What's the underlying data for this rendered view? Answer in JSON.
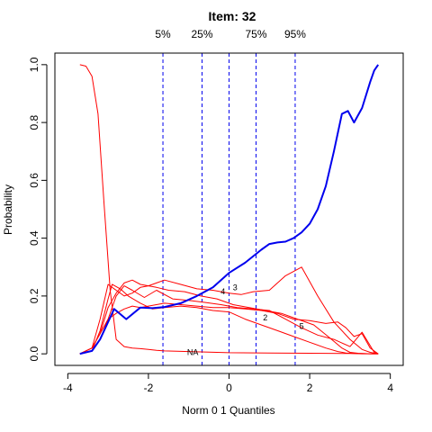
{
  "chart_data": {
    "type": "line",
    "title": "Item:  32",
    "xlabel": "Norm 0 1 Quantiles",
    "ylabel": "Probability",
    "xlim": [
      -4,
      4
    ],
    "ylim": [
      0,
      1
    ],
    "x_ticks": [
      -4,
      -2,
      0,
      2,
      4
    ],
    "y_ticks": [
      0.0,
      0.2,
      0.4,
      0.6,
      0.8,
      1.0
    ],
    "x_tick_labels": [
      "-4",
      "-2",
      "0",
      "2",
      "4"
    ],
    "y_tick_labels": [
      "0.0",
      "0.2",
      "0.4",
      "0.6",
      "0.8",
      "1.0"
    ],
    "grid": false,
    "legend": "none",
    "quantile_lines": [
      {
        "label": "5%",
        "x": -1.64
      },
      {
        "label": "25%",
        "x": -0.67
      },
      {
        "label": "",
        "x": 0.0
      },
      {
        "label": "75%",
        "x": 0.67
      },
      {
        "label": "95%",
        "x": 1.64
      }
    ],
    "series": [
      {
        "label": "NA",
        "label_at": [
          -0.9,
          0.005
        ],
        "color": "#ff0000",
        "x": [
          -3.7,
          -3.55,
          -3.4,
          -3.25,
          -3.1,
          -2.95,
          -2.8,
          -2.6,
          -2.4,
          -2.2,
          -2.0,
          -1.8,
          -1.6,
          -1.0,
          -0.5,
          0.0,
          1.0,
          2.0,
          3.0,
          3.7
        ],
        "y": [
          1.0,
          0.995,
          0.96,
          0.83,
          0.52,
          0.22,
          0.05,
          0.025,
          0.02,
          0.018,
          0.015,
          0.012,
          0.01,
          0.008,
          0.006,
          0.004,
          0.003,
          0.002,
          0.001,
          0.0
        ]
      },
      {
        "label": "",
        "color": "#ff0000",
        "x": [
          -3.7,
          -3.4,
          -3.2,
          -3.0,
          -2.9,
          -2.7,
          -2.5,
          -2.2,
          -1.9,
          -1.6,
          -1.2,
          -0.8,
          -0.4,
          0.0,
          0.4,
          0.8,
          1.2,
          1.6,
          2.0,
          2.4,
          2.7,
          2.9,
          3.1,
          3.3,
          3.5,
          3.7
        ],
        "y": [
          0.0,
          0.01,
          0.08,
          0.19,
          0.24,
          0.225,
          0.2,
          0.175,
          0.155,
          0.16,
          0.165,
          0.16,
          0.15,
          0.145,
          0.12,
          0.1,
          0.08,
          0.06,
          0.04,
          0.02,
          0.008,
          0.003,
          0.001,
          0.0,
          0.0,
          0.0
        ]
      },
      {
        "label": "2",
        "label_at": [
          0.9,
          0.125
        ],
        "color": "#ff0000",
        "x": [
          -3.7,
          -3.4,
          -3.2,
          -3.0,
          -2.8,
          -2.6,
          -2.4,
          -2.1,
          -1.8,
          -1.4,
          -1.0,
          -0.6,
          -0.2,
          0.2,
          0.6,
          1.0,
          1.4,
          1.8,
          2.2,
          2.6,
          3.0,
          3.3,
          3.6,
          3.7
        ],
        "y": [
          0.0,
          0.01,
          0.05,
          0.12,
          0.2,
          0.235,
          0.22,
          0.195,
          0.22,
          0.19,
          0.185,
          0.178,
          0.17,
          0.16,
          0.155,
          0.15,
          0.12,
          0.09,
          0.065,
          0.05,
          0.025,
          0.075,
          0.005,
          0.0
        ]
      },
      {
        "label": "3",
        "label_at": [
          0.15,
          0.23
        ],
        "color": "#ff0000",
        "x": [
          -3.7,
          -3.4,
          -3.2,
          -3.0,
          -2.8,
          -2.6,
          -2.4,
          -2.2,
          -2.0,
          -1.8,
          -1.6,
          -1.2,
          -0.8,
          -0.4,
          0.0,
          0.3,
          0.6,
          1.0,
          1.4,
          1.8,
          2.2,
          2.6,
          3.0,
          3.3,
          3.5,
          3.7
        ],
        "y": [
          0.0,
          0.02,
          0.12,
          0.24,
          0.22,
          0.2,
          0.21,
          0.23,
          0.235,
          0.245,
          0.255,
          0.24,
          0.225,
          0.22,
          0.21,
          0.205,
          0.215,
          0.22,
          0.27,
          0.3,
          0.2,
          0.11,
          0.05,
          0.015,
          0.005,
          0.0
        ]
      },
      {
        "label": "4",
        "label_at": [
          -0.15,
          0.215
        ],
        "color": "#ff0000",
        "x": [
          -3.7,
          -3.4,
          -3.2,
          -3.0,
          -2.8,
          -2.6,
          -2.4,
          -2.2,
          -2.0,
          -1.8,
          -1.5,
          -1.1,
          -0.7,
          -0.3,
          0.1,
          0.5,
          0.9,
          1.3,
          1.7,
          2.1,
          2.5,
          2.8,
          3.0,
          3.2,
          3.5,
          3.7
        ],
        "y": [
          0.0,
          0.02,
          0.07,
          0.16,
          0.21,
          0.245,
          0.255,
          0.24,
          0.235,
          0.23,
          0.22,
          0.215,
          0.2,
          0.19,
          0.17,
          0.16,
          0.15,
          0.14,
          0.12,
          0.1,
          0.055,
          0.02,
          0.005,
          0.002,
          0.0,
          0.0
        ]
      },
      {
        "label": "5",
        "label_at": [
          1.8,
          0.095
        ],
        "color": "#ff0000",
        "x": [
          -3.7,
          -3.4,
          -3.2,
          -3.0,
          -2.8,
          -2.6,
          -2.4,
          -2.2,
          -2.0,
          -1.6,
          -1.2,
          -0.8,
          -0.4,
          0.0,
          0.4,
          0.8,
          1.2,
          1.6,
          2.0,
          2.4,
          2.7,
          2.9,
          3.1,
          3.3,
          3.5,
          3.7
        ],
        "y": [
          0.0,
          0.02,
          0.07,
          0.12,
          0.14,
          0.155,
          0.165,
          0.16,
          0.165,
          0.175,
          0.17,
          0.165,
          0.16,
          0.16,
          0.155,
          0.15,
          0.14,
          0.12,
          0.115,
          0.105,
          0.11,
          0.09,
          0.06,
          0.07,
          0.02,
          0.0
        ]
      },
      {
        "label": "",
        "color": "#0000ee",
        "emphasis": true,
        "x": [
          -3.7,
          -3.4,
          -3.2,
          -3.0,
          -2.85,
          -2.55,
          -2.2,
          -1.9,
          -1.6,
          -1.2,
          -0.8,
          -0.4,
          0.0,
          0.4,
          0.8,
          1.0,
          1.2,
          1.4,
          1.6,
          1.8,
          2.0,
          2.2,
          2.4,
          2.6,
          2.8,
          2.95,
          3.1,
          3.3,
          3.5,
          3.6,
          3.7
        ],
        "y": [
          0.0,
          0.01,
          0.05,
          0.11,
          0.155,
          0.12,
          0.16,
          0.158,
          0.162,
          0.175,
          0.2,
          0.23,
          0.28,
          0.315,
          0.36,
          0.38,
          0.385,
          0.388,
          0.4,
          0.42,
          0.45,
          0.5,
          0.58,
          0.7,
          0.83,
          0.84,
          0.8,
          0.85,
          0.94,
          0.98,
          1.0
        ]
      }
    ]
  }
}
